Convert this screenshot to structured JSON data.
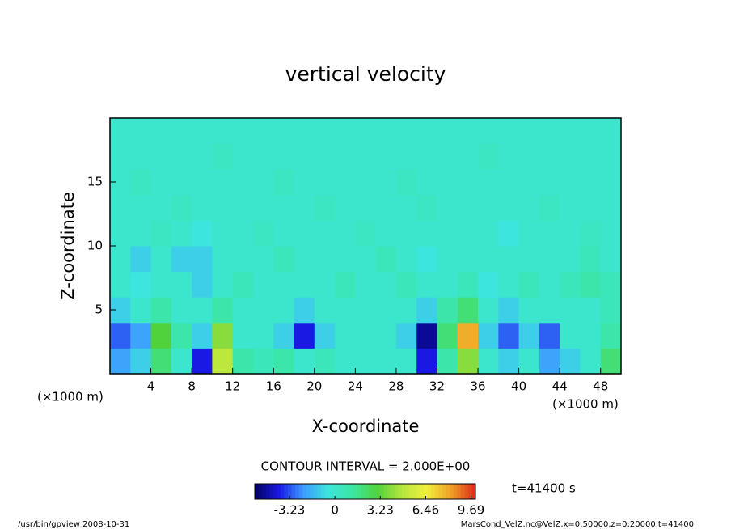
{
  "chart_data": {
    "type": "heatmap",
    "title": "vertical velocity",
    "x_label": "X-coordinate",
    "y_label": "Z-coordinate",
    "x_unit": "(×1000 m)",
    "y_unit": "(×1000 m)",
    "contour_interval": "CONTOUR INTERVAL = 2.000E+00",
    "time_label": "t=41400 s",
    "footer_left": "/usr/bin/gpview  2008-10-31",
    "footer_right": "MarsCond_VelZ.nc@VelZ,x=0:50000,z=0:20000,t=41400",
    "xlim": [
      0,
      50
    ],
    "ylim": [
      0,
      20
    ],
    "xticks": [
      4,
      8,
      12,
      16,
      20,
      24,
      28,
      32,
      36,
      40,
      44,
      48
    ],
    "yticks": [
      5,
      10,
      15
    ],
    "x": [
      1,
      3,
      5,
      7,
      9,
      11,
      13,
      15,
      17,
      19,
      21,
      23,
      25,
      27,
      29,
      31,
      33,
      35,
      37,
      39,
      41,
      43,
      45,
      47,
      49
    ],
    "y": [
      1,
      3,
      5,
      7,
      9,
      11,
      13,
      15,
      17,
      19
    ],
    "z": [
      [
        -2,
        -1,
        2,
        0,
        -4,
        5,
        1,
        0.5,
        1,
        0,
        0.5,
        0,
        0,
        0,
        0,
        -4,
        1,
        4,
        0,
        -1,
        0,
        -2,
        -1,
        0,
        2
      ],
      [
        -3,
        -2,
        3,
        1,
        -1,
        4,
        0,
        0,
        -1,
        -4,
        -1,
        0,
        0,
        0,
        -1,
        -5,
        2,
        8,
        -1,
        -3,
        -1,
        -3,
        0,
        0,
        1
      ],
      [
        -1,
        0,
        1,
        0,
        0,
        1,
        0,
        0,
        0,
        -1,
        0,
        0,
        0,
        0,
        0,
        -1,
        1,
        2,
        0,
        -1,
        0,
        0,
        0,
        0,
        0.5
      ],
      [
        0,
        -0.5,
        0,
        0,
        -1,
        0,
        0.5,
        0,
        0,
        0,
        0,
        0.5,
        0,
        0,
        0.5,
        0,
        0,
        0.5,
        -0.5,
        0,
        0.5,
        0,
        0.5,
        1,
        0.5
      ],
      [
        0,
        -1,
        0,
        -1,
        -1,
        0,
        0,
        0,
        0.5,
        0,
        0,
        0,
        0,
        0.5,
        0,
        -0.5,
        0,
        0,
        0,
        0,
        0,
        0,
        0,
        0.5,
        0
      ],
      [
        0,
        0,
        0.3,
        0,
        -0.5,
        0,
        0,
        0.3,
        0,
        0,
        0,
        0,
        0.3,
        0,
        0,
        0,
        0,
        0,
        0,
        -0.5,
        0,
        0,
        0,
        0.3,
        0
      ],
      [
        0,
        0,
        0,
        0.3,
        0,
        0,
        0,
        0,
        0,
        0,
        0.3,
        0,
        0,
        0,
        0,
        0.3,
        0,
        0,
        0,
        0,
        0,
        0.3,
        0,
        0,
        0
      ],
      [
        0,
        0.3,
        0,
        0,
        0,
        0,
        0,
        0,
        0.3,
        0,
        0,
        0,
        0,
        0,
        0.3,
        0,
        0,
        0,
        0,
        0,
        0,
        0,
        0,
        0,
        0
      ],
      [
        0,
        0,
        0,
        0,
        0,
        0.3,
        0,
        0,
        0,
        0,
        0,
        0,
        0,
        0,
        0,
        0,
        0,
        0,
        0.3,
        0,
        0,
        0,
        0,
        0,
        0
      ],
      [
        0,
        0,
        0,
        0,
        0,
        0,
        0,
        0,
        0,
        0,
        0,
        0,
        0,
        0,
        0,
        0,
        0,
        0,
        0,
        0,
        0,
        0,
        0,
        0,
        0
      ]
    ],
    "clim": [
      -5.7,
      10
    ],
    "colormap": [
      "#000060",
      "#1a1ae6",
      "#3c9cff",
      "#3ce6dc",
      "#3ce6a0",
      "#50d23c",
      "#b4e63c",
      "#f0f03c",
      "#f0a028",
      "#e02818"
    ],
    "colorbar_ticks": [
      -3.23,
      0,
      3.23,
      6.46,
      9.69
    ]
  }
}
